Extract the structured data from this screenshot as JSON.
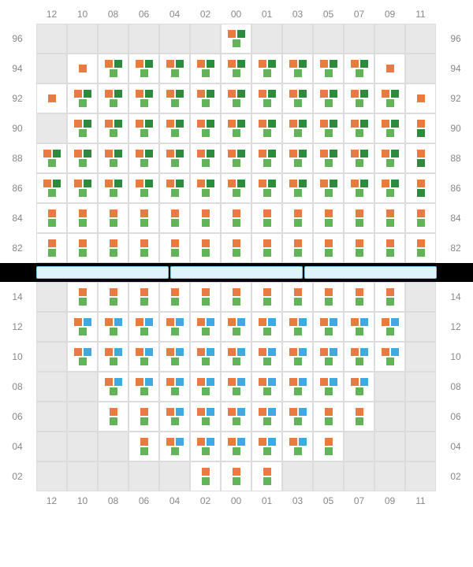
{
  "colors": {
    "orange": "#e87b42",
    "green": "#63b35a",
    "darkgreen": "#2e8b3d",
    "blue": "#3fa9e0",
    "cell_bg": "#ffffff",
    "empty_bg": "#e8e8e8",
    "grid_border": "#dcdcdc",
    "label_color": "#888888",
    "stage_fill": "#def3fc",
    "stage_border": "#7ac8ea",
    "stage_bg": "#000000"
  },
  "label_fontsize": 12,
  "columns": [
    "12",
    "10",
    "08",
    "06",
    "04",
    "02",
    "00",
    "01",
    "03",
    "05",
    "07",
    "09",
    "11"
  ],
  "upper": {
    "rows": [
      "96",
      "94",
      "92",
      "90",
      "88",
      "86",
      "84",
      "82"
    ],
    "cells": {
      "96": [
        null,
        null,
        null,
        null,
        null,
        null,
        [
          "orange",
          "darkgreen",
          "green"
        ],
        null,
        null,
        null,
        null,
        null,
        null
      ],
      "94": [
        null,
        [
          "orange"
        ],
        [
          "orange",
          "darkgreen",
          "green"
        ],
        [
          "orange",
          "darkgreen",
          "green"
        ],
        [
          "orange",
          "darkgreen",
          "green"
        ],
        [
          "orange",
          "darkgreen",
          "green"
        ],
        [
          "orange",
          "darkgreen",
          "green"
        ],
        [
          "orange",
          "darkgreen",
          "green"
        ],
        [
          "orange",
          "darkgreen",
          "green"
        ],
        [
          "orange",
          "darkgreen",
          "green"
        ],
        [
          "orange",
          "darkgreen",
          "green"
        ],
        [
          "orange"
        ],
        null
      ],
      "92": [
        [
          "orange"
        ],
        [
          "orange",
          "darkgreen",
          "green"
        ],
        [
          "orange",
          "darkgreen",
          "green"
        ],
        [
          "orange",
          "darkgreen",
          "green"
        ],
        [
          "orange",
          "darkgreen",
          "green"
        ],
        [
          "orange",
          "darkgreen",
          "green"
        ],
        [
          "orange",
          "darkgreen",
          "green"
        ],
        [
          "orange",
          "darkgreen",
          "green"
        ],
        [
          "orange",
          "darkgreen",
          "green"
        ],
        [
          "orange",
          "darkgreen",
          "green"
        ],
        [
          "orange",
          "darkgreen",
          "green"
        ],
        [
          "orange",
          "darkgreen",
          "green"
        ],
        [
          "orange"
        ]
      ],
      "90": [
        null,
        [
          "orange",
          "darkgreen",
          "green"
        ],
        [
          "orange",
          "darkgreen",
          "green"
        ],
        [
          "orange",
          "darkgreen",
          "green"
        ],
        [
          "orange",
          "darkgreen",
          "green"
        ],
        [
          "orange",
          "darkgreen",
          "green"
        ],
        [
          "orange",
          "darkgreen",
          "green"
        ],
        [
          "orange",
          "darkgreen",
          "green"
        ],
        [
          "orange",
          "darkgreen",
          "green"
        ],
        [
          "orange",
          "darkgreen",
          "green"
        ],
        [
          "orange",
          "darkgreen",
          "green"
        ],
        [
          "orange",
          "darkgreen",
          "green"
        ],
        [
          "orange",
          "darkgreen"
        ]
      ],
      "88": [
        [
          "orange",
          "darkgreen",
          "green"
        ],
        [
          "orange",
          "darkgreen",
          "green"
        ],
        [
          "orange",
          "darkgreen",
          "green"
        ],
        [
          "orange",
          "darkgreen",
          "green"
        ],
        [
          "orange",
          "darkgreen",
          "green"
        ],
        [
          "orange",
          "darkgreen",
          "green"
        ],
        [
          "orange",
          "darkgreen",
          "green"
        ],
        [
          "orange",
          "darkgreen",
          "green"
        ],
        [
          "orange",
          "darkgreen",
          "green"
        ],
        [
          "orange",
          "darkgreen",
          "green"
        ],
        [
          "orange",
          "darkgreen",
          "green"
        ],
        [
          "orange",
          "darkgreen",
          "green"
        ],
        [
          "orange",
          "darkgreen"
        ]
      ],
      "86": [
        [
          "orange",
          "darkgreen",
          "green"
        ],
        [
          "orange",
          "darkgreen",
          "green"
        ],
        [
          "orange",
          "darkgreen",
          "green"
        ],
        [
          "orange",
          "darkgreen",
          "green"
        ],
        [
          "orange",
          "darkgreen",
          "green"
        ],
        [
          "orange",
          "darkgreen",
          "green"
        ],
        [
          "orange",
          "darkgreen",
          "green"
        ],
        [
          "orange",
          "darkgreen",
          "green"
        ],
        [
          "orange",
          "darkgreen",
          "green"
        ],
        [
          "orange",
          "darkgreen",
          "green"
        ],
        [
          "orange",
          "darkgreen",
          "green"
        ],
        [
          "orange",
          "darkgreen",
          "green"
        ],
        [
          "orange",
          "darkgreen"
        ]
      ],
      "84": [
        [
          "orange",
          "green"
        ],
        [
          "orange",
          "green"
        ],
        [
          "orange",
          "green"
        ],
        [
          "orange",
          "green"
        ],
        [
          "orange",
          "green"
        ],
        [
          "orange",
          "green"
        ],
        [
          "orange",
          "green"
        ],
        [
          "orange",
          "green"
        ],
        [
          "orange",
          "green"
        ],
        [
          "orange",
          "green"
        ],
        [
          "orange",
          "green"
        ],
        [
          "orange",
          "green"
        ],
        [
          "orange",
          "green"
        ]
      ],
      "82": [
        [
          "orange",
          "green"
        ],
        [
          "orange",
          "green"
        ],
        [
          "orange",
          "green"
        ],
        [
          "orange",
          "green"
        ],
        [
          "orange",
          "green"
        ],
        [
          "orange",
          "green"
        ],
        [
          "orange",
          "green"
        ],
        [
          "orange",
          "green"
        ],
        [
          "orange",
          "green"
        ],
        [
          "orange",
          "green"
        ],
        [
          "orange",
          "green"
        ],
        [
          "orange",
          "green"
        ],
        [
          "orange",
          "green"
        ]
      ]
    }
  },
  "lower": {
    "rows": [
      "14",
      "12",
      "10",
      "08",
      "06",
      "04",
      "02"
    ],
    "cells": {
      "14": [
        null,
        [
          "orange",
          "green"
        ],
        [
          "orange",
          "green"
        ],
        [
          "orange",
          "green"
        ],
        [
          "orange",
          "green"
        ],
        [
          "orange",
          "green"
        ],
        [
          "orange",
          "green"
        ],
        [
          "orange",
          "green"
        ],
        [
          "orange",
          "green"
        ],
        [
          "orange",
          "green"
        ],
        [
          "orange",
          "green"
        ],
        [
          "orange",
          "green"
        ],
        null
      ],
      "12": [
        null,
        [
          "orange",
          "blue",
          "green"
        ],
        [
          "orange",
          "blue",
          "green"
        ],
        [
          "orange",
          "blue",
          "green"
        ],
        [
          "orange",
          "blue",
          "green"
        ],
        [
          "orange",
          "blue",
          "green"
        ],
        [
          "orange",
          "blue",
          "green"
        ],
        [
          "orange",
          "blue",
          "green"
        ],
        [
          "orange",
          "blue",
          "green"
        ],
        [
          "orange",
          "blue",
          "green"
        ],
        [
          "orange",
          "blue",
          "green"
        ],
        [
          "orange",
          "blue",
          "green"
        ],
        null
      ],
      "10": [
        null,
        [
          "orange",
          "blue",
          "green"
        ],
        [
          "orange",
          "blue",
          "green"
        ],
        [
          "orange",
          "blue",
          "green"
        ],
        [
          "orange",
          "blue",
          "green"
        ],
        [
          "orange",
          "blue",
          "green"
        ],
        [
          "orange",
          "blue",
          "green"
        ],
        [
          "orange",
          "blue",
          "green"
        ],
        [
          "orange",
          "blue",
          "green"
        ],
        [
          "orange",
          "blue",
          "green"
        ],
        [
          "orange",
          "blue",
          "green"
        ],
        [
          "orange",
          "blue",
          "green"
        ],
        null
      ],
      "08": [
        null,
        null,
        [
          "orange",
          "blue",
          "green"
        ],
        [
          "orange",
          "blue",
          "green"
        ],
        [
          "orange",
          "blue",
          "green"
        ],
        [
          "orange",
          "blue",
          "green"
        ],
        [
          "orange",
          "blue",
          "green"
        ],
        [
          "orange",
          "blue",
          "green"
        ],
        [
          "orange",
          "blue",
          "green"
        ],
        [
          "orange",
          "blue",
          "green"
        ],
        [
          "orange",
          "blue",
          "green"
        ],
        null,
        null
      ],
      "06": [
        null,
        null,
        [
          "orange",
          "green"
        ],
        [
          "orange",
          "green"
        ],
        [
          "orange",
          "blue",
          "green"
        ],
        [
          "orange",
          "blue",
          "green"
        ],
        [
          "orange",
          "blue",
          "green"
        ],
        [
          "orange",
          "blue",
          "green"
        ],
        [
          "orange",
          "blue",
          "green"
        ],
        [
          "orange",
          "green"
        ],
        [
          "orange",
          "green"
        ],
        null,
        null
      ],
      "04": [
        null,
        null,
        null,
        [
          "orange",
          "green"
        ],
        [
          "orange",
          "blue",
          "green"
        ],
        [
          "orange",
          "blue",
          "green"
        ],
        [
          "orange",
          "blue",
          "green"
        ],
        [
          "orange",
          "blue",
          "green"
        ],
        [
          "orange",
          "blue",
          "green"
        ],
        [
          "orange",
          "green"
        ],
        null,
        null,
        null
      ],
      "02": [
        null,
        null,
        null,
        null,
        null,
        [
          "orange",
          "green"
        ],
        [
          "orange",
          "green"
        ],
        [
          "orange",
          "green"
        ],
        null,
        null,
        null,
        null,
        null
      ]
    }
  },
  "stage_segments": 3
}
